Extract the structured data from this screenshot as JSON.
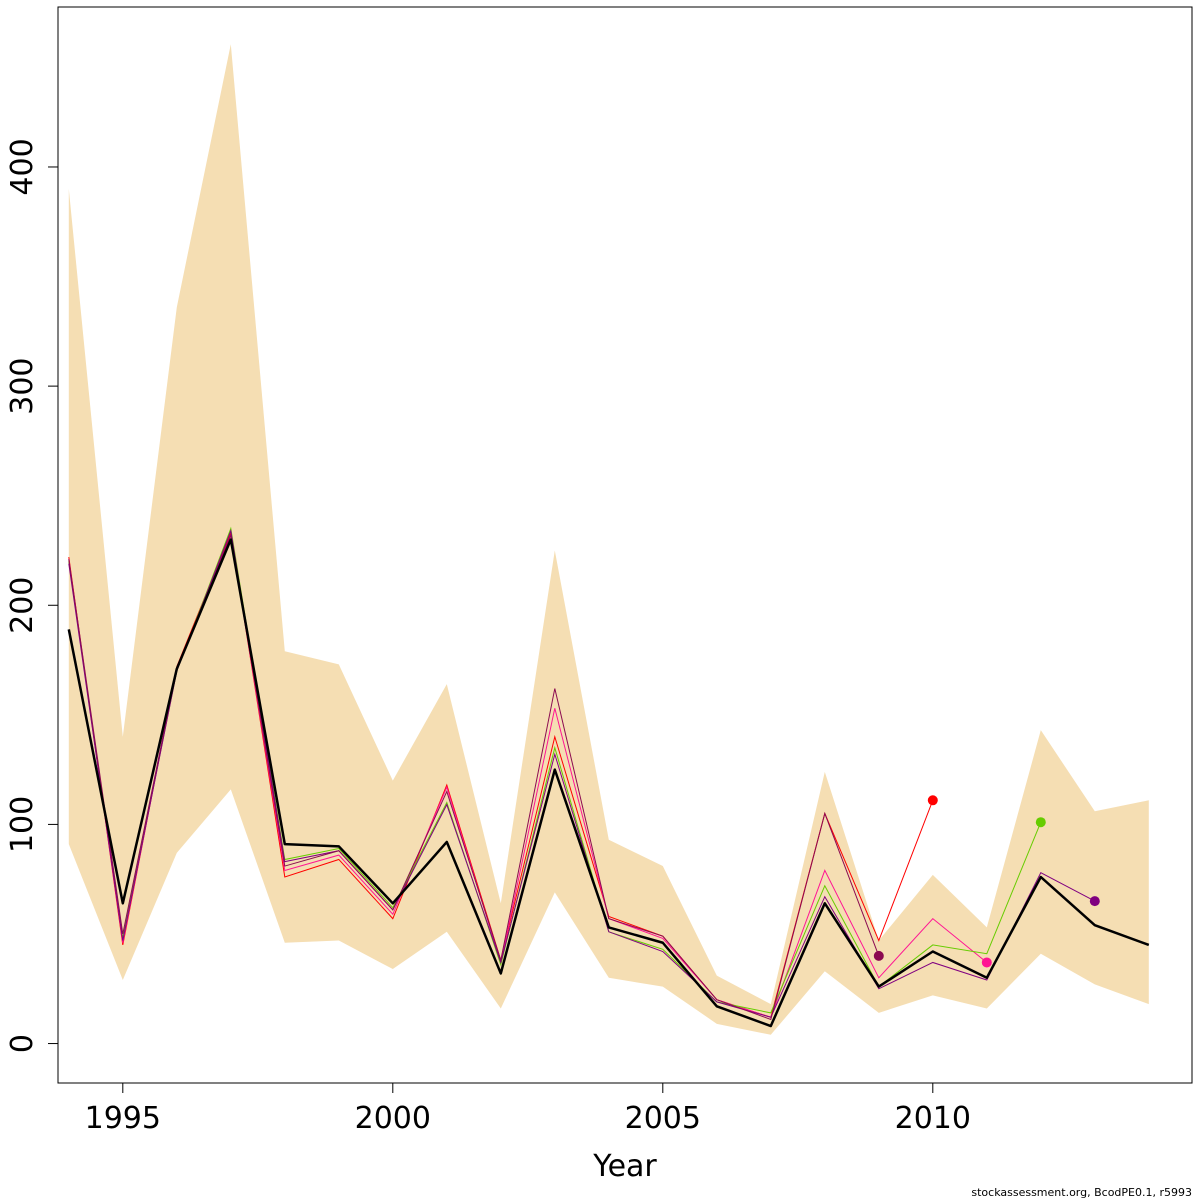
{
  "chart_data": {
    "type": "line",
    "title": "",
    "xlabel": "Year",
    "ylabel": "",
    "footnote": "stockassessment.org, BcodPE0.1, r5993",
    "xlim": [
      1993.8,
      2014.8
    ],
    "ylim": [
      -18,
      473
    ],
    "xticks": [
      1995,
      2000,
      2005,
      2010
    ],
    "yticks": [
      0,
      100,
      200,
      300,
      400
    ],
    "grid": false,
    "legend": "none",
    "band": {
      "color": "#F5DEB3",
      "x": [
        1994,
        1995,
        1996,
        1997,
        1998,
        1999,
        2000,
        2001,
        2002,
        2003,
        2004,
        2005,
        2006,
        2007,
        2008,
        2009,
        2010,
        2011,
        2012,
        2013,
        2014
      ],
      "lower": [
        91,
        29,
        87,
        116,
        46,
        47,
        34,
        51,
        16,
        69,
        30,
        26,
        9,
        4,
        33,
        14,
        22,
        16,
        41,
        27,
        18
      ],
      "upper": [
        390,
        140,
        336,
        456,
        179,
        173,
        120,
        164,
        64,
        225,
        93,
        81,
        31,
        18,
        124,
        47,
        77,
        53,
        143,
        106,
        111
      ]
    },
    "base_series": {
      "color": "#000000",
      "x": [
        1994,
        1995,
        1996,
        1997,
        1998,
        1999,
        2000,
        2001,
        2002,
        2003,
        2004,
        2005,
        2006,
        2007,
        2008,
        2009,
        2010,
        2011,
        2012,
        2013,
        2014
      ],
      "values": [
        189,
        64,
        171,
        230,
        91,
        90,
        64,
        92,
        32,
        125,
        53,
        46,
        17,
        8,
        64,
        26,
        42,
        30,
        76,
        54,
        45
      ]
    },
    "retro_series": [
      {
        "color": "#FF0000",
        "x": [
          1994,
          1995,
          1996,
          1997,
          1998,
          1999,
          2000,
          2001,
          2002,
          2003,
          2004,
          2005,
          2006,
          2007,
          2008,
          2009,
          2010
        ],
        "values": [
          222,
          45,
          172,
          233,
          76,
          84,
          57,
          118,
          38,
          140,
          58,
          49,
          20,
          12,
          105,
          47,
          111
        ],
        "endpoint": true
      },
      {
        "color": "#FF1493",
        "x": [
          1994,
          1995,
          1996,
          1997,
          1998,
          1999,
          2000,
          2001,
          2002,
          2003,
          2004,
          2005,
          2006,
          2007,
          2008,
          2009,
          2010,
          2011
        ],
        "values": [
          221,
          46,
          171,
          232,
          79,
          86,
          59,
          117,
          37,
          153,
          57,
          48,
          20,
          12,
          79,
          30,
          57,
          37
        ],
        "endpoint": true
      },
      {
        "color": "#66CC00",
        "x": [
          1994,
          1995,
          1996,
          1997,
          1998,
          1999,
          2000,
          2001,
          2002,
          2003,
          2004,
          2005,
          2006,
          2007,
          2008,
          2009,
          2010,
          2011,
          2012
        ],
        "values": [
          220,
          48,
          170,
          235,
          84,
          89,
          62,
          110,
          36,
          135,
          51,
          43,
          19,
          14,
          72,
          26,
          45,
          41,
          101
        ],
        "endpoint": true
      },
      {
        "color": "#800080",
        "x": [
          1994,
          1995,
          1996,
          1997,
          1998,
          1999,
          2000,
          2001,
          2002,
          2003,
          2004,
          2005,
          2006,
          2007,
          2008,
          2009,
          2010,
          2011,
          2012,
          2013
        ],
        "values": [
          219,
          47,
          170,
          234,
          83,
          88,
          61,
          109,
          37,
          132,
          51,
          42,
          19,
          12,
          67,
          25,
          37,
          29,
          78,
          65
        ],
        "endpoint": true
      },
      {
        "color": "#8B0A50",
        "x": [
          1994,
          1995,
          1996,
          1997,
          1998,
          1999,
          2000,
          2001,
          2002,
          2003,
          2004,
          2005,
          2006,
          2007,
          2008,
          2009
        ],
        "values": [
          221,
          50,
          171,
          232,
          81,
          88,
          61,
          115,
          38,
          162,
          57,
          49,
          20,
          11,
          105,
          40
        ],
        "endpoint": true
      }
    ]
  }
}
